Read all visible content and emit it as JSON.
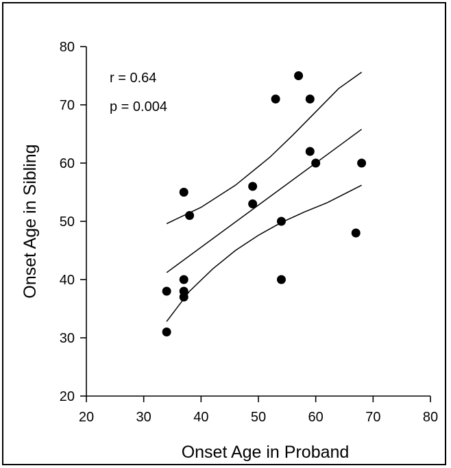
{
  "chart_data": {
    "type": "scatter",
    "xlabel": "Onset Age in Proband",
    "ylabel": "Onset Age in Sibling",
    "xlim": [
      20,
      80
    ],
    "ylim": [
      20,
      80
    ],
    "xticks": [
      20,
      30,
      40,
      50,
      60,
      70,
      80
    ],
    "yticks": [
      20,
      30,
      40,
      50,
      60,
      70,
      80
    ],
    "grid": false,
    "annotations": [
      "r = 0.64",
      "p = 0.004"
    ],
    "points": [
      {
        "x": 34,
        "y": 38
      },
      {
        "x": 34,
        "y": 31
      },
      {
        "x": 37,
        "y": 55
      },
      {
        "x": 37,
        "y": 40
      },
      {
        "x": 37,
        "y": 38
      },
      {
        "x": 37,
        "y": 37
      },
      {
        "x": 38,
        "y": 51
      },
      {
        "x": 49,
        "y": 56
      },
      {
        "x": 49,
        "y": 53
      },
      {
        "x": 53,
        "y": 71
      },
      {
        "x": 54,
        "y": 50
      },
      {
        "x": 54,
        "y": 40
      },
      {
        "x": 57,
        "y": 75
      },
      {
        "x": 59,
        "y": 71
      },
      {
        "x": 59,
        "y": 62
      },
      {
        "x": 60,
        "y": 60
      },
      {
        "x": 67,
        "y": 48
      },
      {
        "x": 68,
        "y": 60
      }
    ],
    "regression_line": {
      "x": [
        34,
        68
      ],
      "y": [
        41.2,
        65.8
      ]
    },
    "confidence_upper": {
      "x": [
        34,
        40,
        46,
        52,
        56,
        60,
        64,
        68
      ],
      "y": [
        49.6,
        52.4,
        56.2,
        61.0,
        64.8,
        68.8,
        72.8,
        75.6
      ]
    },
    "confidence_lower": {
      "x": [
        34,
        38,
        42,
        46,
        50,
        54,
        58,
        62,
        68
      ],
      "y": [
        32.8,
        38.0,
        41.8,
        45.0,
        47.6,
        49.8,
        51.6,
        53.2,
        56.2
      ]
    },
    "colors": {
      "points": "#000000",
      "lines": "#000000",
      "background": "#ffffff"
    }
  }
}
